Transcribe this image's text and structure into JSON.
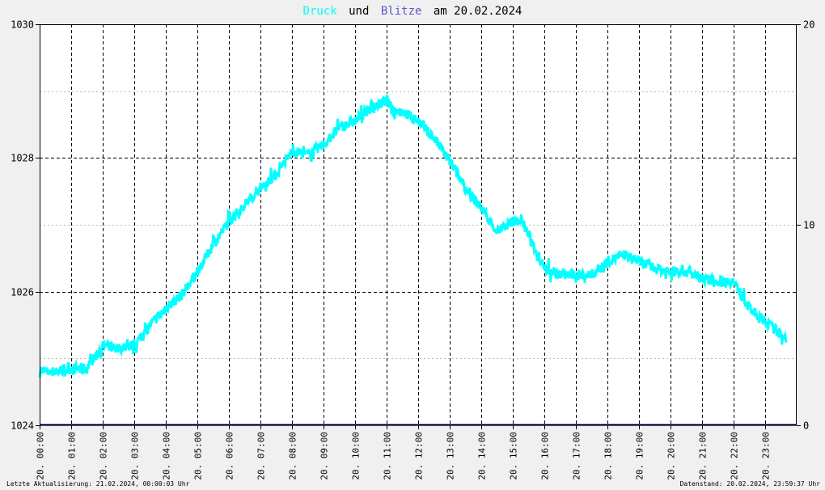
{
  "title": {
    "part1": "Druck",
    "part2": "und",
    "part3": "Blitze",
    "part4": "am 20.02.2024"
  },
  "footer": {
    "left": "Letzte Aktualisierung: 21.02.2024, 00:00:03 Uhr",
    "right": "Datenstand: 20.02.2024, 23:59:37 Uhr"
  },
  "colors": {
    "background": "#f0f0f0",
    "plot_background": "#ffffff",
    "pressure": "#00ffff",
    "lightning": "#2a2a80",
    "grid": "#000000",
    "text": "#000000"
  },
  "chart_data": {
    "type": "line",
    "title": "Druck und Blitze am 20.02.2024",
    "xlabel": "",
    "ylabel": "",
    "x_ticks": [
      "20. 00:00",
      "20. 01:00",
      "20. 02:00",
      "20. 03:00",
      "20. 04:00",
      "20. 05:00",
      "20. 06:00",
      "20. 07:00",
      "20. 08:00",
      "20. 09:00",
      "20. 10:00",
      "20. 11:00",
      "20. 12:00",
      "20. 13:00",
      "20. 14:00",
      "20. 15:00",
      "20. 16:00",
      "20. 17:00",
      "20. 18:00",
      "20. 19:00",
      "20. 20:00",
      "20. 21:00",
      "20. 22:00",
      "20. 23:00"
    ],
    "xlim": [
      "20.02.2024 00:00",
      "20.02.2024 24:00"
    ],
    "y_left": {
      "ticks": [
        "1024",
        "1026",
        "1028",
        "1030"
      ],
      "ylim": [
        1024,
        1030
      ]
    },
    "y_right": {
      "ticks": [
        "0",
        "10",
        "20"
      ],
      "ylim": [
        0,
        20
      ]
    },
    "grid": true,
    "series": [
      {
        "name": "Druck",
        "axis": "left",
        "color": "#00ffff",
        "x_time": [
          "00:00",
          "00:30",
          "01:00",
          "01:30",
          "02:00",
          "02:30",
          "03:00",
          "03:30",
          "04:00",
          "04:30",
          "05:00",
          "05:30",
          "06:00",
          "06:30",
          "07:00",
          "07:30",
          "08:00",
          "08:30",
          "09:00",
          "09:30",
          "10:00",
          "10:30",
          "11:00",
          "11:15",
          "11:30",
          "12:00",
          "12:30",
          "13:00",
          "13:30",
          "14:00",
          "14:30",
          "15:00",
          "15:15",
          "15:30",
          "16:00",
          "16:30",
          "17:00",
          "17:30",
          "18:00",
          "18:30",
          "19:00",
          "19:30",
          "20:00",
          "20:30",
          "21:00",
          "21:30",
          "22:00",
          "22:30",
          "23:00",
          "23:40"
        ],
        "values": [
          1024.8,
          1024.8,
          1024.85,
          1024.85,
          1025.2,
          1025.15,
          1025.2,
          1025.5,
          1025.75,
          1025.95,
          1026.3,
          1026.7,
          1027.05,
          1027.3,
          1027.55,
          1027.75,
          1028.1,
          1028.05,
          1028.2,
          1028.45,
          1028.55,
          1028.75,
          1028.85,
          1028.7,
          1028.7,
          1028.55,
          1028.3,
          1027.95,
          1027.55,
          1027.25,
          1026.9,
          1027.05,
          1027.1,
          1026.85,
          1026.35,
          1026.25,
          1026.25,
          1026.25,
          1026.45,
          1026.55,
          1026.45,
          1026.35,
          1026.3,
          1026.3,
          1026.2,
          1026.15,
          1026.15,
          1025.75,
          1025.55,
          1025.3
        ]
      },
      {
        "name": "Blitze",
        "axis": "right",
        "color": "#2a2a80",
        "x_time": [
          "00:00",
          "24:00"
        ],
        "values": [
          0,
          0
        ]
      }
    ]
  }
}
